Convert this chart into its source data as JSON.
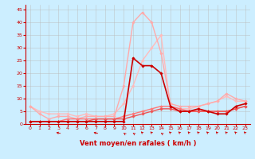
{
  "title": "",
  "xlabel": "Vent moyen/en rafales ( km/h )",
  "ylabel": "",
  "xlim": [
    -0.5,
    23.5
  ],
  "ylim": [
    0,
    47
  ],
  "xticks": [
    0,
    1,
    2,
    3,
    4,
    5,
    6,
    7,
    8,
    9,
    10,
    11,
    12,
    13,
    14,
    15,
    16,
    17,
    18,
    19,
    20,
    21,
    22,
    23
  ],
  "yticks": [
    0,
    5,
    10,
    15,
    20,
    25,
    30,
    35,
    40,
    45
  ],
  "background_color": "#cceeff",
  "grid_color": "#bbbbbb",
  "lines": [
    {
      "x": [
        0,
        1,
        2,
        3,
        4,
        5,
        6,
        7,
        8,
        9,
        10,
        11,
        12,
        13,
        14,
        15,
        16,
        17,
        18,
        19,
        20,
        21,
        22,
        23
      ],
      "y": [
        1,
        1,
        1,
        1,
        1,
        1,
        1,
        1,
        1,
        1,
        1,
        26,
        23,
        23,
        20,
        7,
        5,
        5,
        6,
        5,
        4,
        4,
        7,
        8
      ],
      "color": "#cc0000",
      "linewidth": 1.2,
      "marker": "D",
      "markersize": 1.8,
      "alpha": 1.0,
      "zorder": 5
    },
    {
      "x": [
        0,
        1,
        2,
        3,
        4,
        5,
        6,
        7,
        8,
        9,
        10,
        11,
        12,
        13,
        14,
        15,
        16,
        17,
        18,
        19,
        20,
        21,
        22,
        23
      ],
      "y": [
        7,
        4,
        2,
        3,
        3,
        2,
        3,
        3,
        3,
        3,
        15,
        40,
        44,
        40,
        28,
        8,
        7,
        7,
        7,
        8,
        9,
        12,
        10,
        9
      ],
      "color": "#ffaaaa",
      "linewidth": 1.0,
      "marker": "D",
      "markersize": 1.8,
      "alpha": 1.0,
      "zorder": 3
    },
    {
      "x": [
        0,
        1,
        2,
        3,
        4,
        5,
        6,
        7,
        8,
        9,
        10,
        11,
        12,
        13,
        14,
        15,
        16,
        17,
        18,
        19,
        20,
        21,
        22,
        23
      ],
      "y": [
        7,
        5,
        4,
        4,
        4,
        3,
        4,
        3,
        3,
        4,
        8,
        15,
        25,
        30,
        35,
        7,
        6,
        6,
        7,
        8,
        9,
        11,
        9,
        9
      ],
      "color": "#ffbbbb",
      "linewidth": 1.0,
      "marker": "D",
      "markersize": 1.8,
      "alpha": 1.0,
      "zorder": 2
    },
    {
      "x": [
        0,
        1,
        2,
        3,
        4,
        5,
        6,
        7,
        8,
        9,
        10,
        11,
        12,
        13,
        14,
        15,
        16,
        17,
        18,
        19,
        20,
        21,
        22,
        23
      ],
      "y": [
        1,
        1,
        1,
        1,
        2,
        2,
        2,
        2,
        2,
        2,
        3,
        4,
        5,
        6,
        7,
        7,
        6,
        5,
        5,
        5,
        5,
        5,
        6,
        7
      ],
      "color": "#ff7777",
      "linewidth": 1.0,
      "marker": "D",
      "markersize": 1.8,
      "alpha": 1.0,
      "zorder": 4
    },
    {
      "x": [
        0,
        1,
        2,
        3,
        4,
        5,
        6,
        7,
        8,
        9,
        10,
        11,
        12,
        13,
        14,
        15,
        16,
        17,
        18,
        19,
        20,
        21,
        22,
        23
      ],
      "y": [
        1,
        1,
        1,
        1,
        1,
        1,
        1,
        2,
        2,
        2,
        2,
        3,
        4,
        5,
        6,
        6,
        5,
        5,
        5,
        5,
        5,
        5,
        6,
        7
      ],
      "color": "#ee5555",
      "linewidth": 1.0,
      "marker": "D",
      "markersize": 1.8,
      "alpha": 1.0,
      "zorder": 4
    }
  ],
  "arrow_color": "#cc0000",
  "xlabel_fontsize": 6.0,
  "tick_fontsize": 4.5
}
